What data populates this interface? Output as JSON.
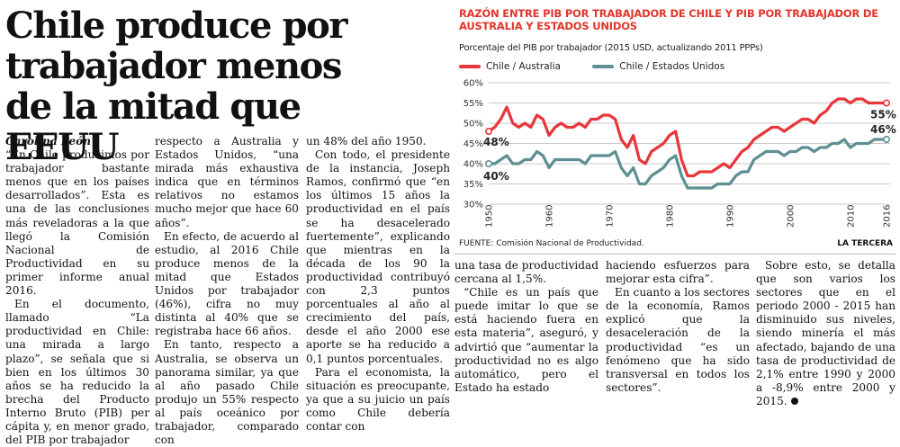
{
  "article": {
    "headline": "Chile produce por trabajador menos de la mitad que EEUU",
    "byline": "Carolina León",
    "col1": [
      "“En Chile producimos por trabajador bastante menos que en los países desarrollados”. Esta es una de las conclusiones más reveladoras a la que llegó la Comisión Nacional de Productividad en su primer informe anual 2016.",
      "En el documento, llamado “La productividad en Chile: una mirada a largo plazo”, se señala que si bien en los últimos 30 años se ha reducido la brecha del Producto Interno Bruto (PIB) per cápita y, en menor grado, del PIB por trabajador"
    ],
    "col2": [
      "respecto a Australia y Estados Unidos, “una mirada más exhaustiva indica que en términos relativos no estamos mucho mejor que hace 60 años”.",
      "En efecto, de acuerdo al estudio, al 2016 Chile produce menos de la mitad que Estados Unidos por trabajador (46%), cifra no muy distinta al 40% que se registraba hace 66 años.",
      "En tanto, respecto a Australia, se observa un panorama similar, ya que al año pasado Chile produjo un 55% respecto al país oceánico por trabajador, comparado con"
    ],
    "col3": [
      "un 48% del año 1950.",
      "Con todo, el presidente de la instancia, Joseph Ramos, confirmó que “en los últimos 15 años la productividad en el país se ha desacelerado fuertemente”, explicando que mientras en la década de los 90 la productividad contribuyó con 2,3 puntos porcentuales al año al crecimiento del país, desde el año 2000 ese aporte se ha reducido a 0,1 puntos porcentuales.",
      "Para el economista, la situación es preocupante, ya que a su juicio un país como Chile debería contar con"
    ],
    "col4": [
      "una tasa de productividad cercana al 1,5%.",
      "“Chile es un país que puede imitar lo que se está haciendo fuera en esta materia”, aseguró, y advirtió que “aumentar la productividad no es algo automático, pero el Estado ha estado"
    ],
    "col5": [
      "haciendo esfuerzos para mejorar esta cifra”.",
      "En cuanto a los sectores de la economía, Ramos explicó que la desaceleración de la productividad “es un fenómeno que ha sido transversal en todos los sectores”."
    ],
    "col6": [
      "Sobre esto, se detalla que son varios los sectores que en el periodo 2000 - 2015 han disminuido sus niveles, siendo minería el más afectado, bajando de una tasa de productividad de 2,1% entre 1990 y 2000 a -8,9% entre 2000 y 2015."
    ]
  },
  "chart": {
    "title": "RAZÓN ENTRE PIB POR TRABAJADOR DE CHILE Y PIB POR TRABAJADOR DE AUSTRALIA Y ESTADOS UNIDOS",
    "subtitle": "Porcentaje del PIB por trabajador (2015 USD, actualizando 2011 PPPs)",
    "source": "FUENTE: Comisión Nacional de Productividad.",
    "brand": "LA TERCERA",
    "colors": {
      "australia": "#e8363a",
      "usa": "#5f8f92",
      "grid": "#c9c9c9"
    }
  },
  "chart_data": {
    "type": "line",
    "x": [
      1950,
      1951,
      1952,
      1953,
      1954,
      1955,
      1956,
      1957,
      1958,
      1959,
      1960,
      1961,
      1962,
      1963,
      1964,
      1965,
      1966,
      1967,
      1968,
      1969,
      1970,
      1971,
      1972,
      1973,
      1974,
      1975,
      1976,
      1977,
      1978,
      1979,
      1980,
      1981,
      1982,
      1983,
      1984,
      1985,
      1986,
      1987,
      1988,
      1989,
      1990,
      1991,
      1992,
      1993,
      1994,
      1995,
      1996,
      1997,
      1998,
      1999,
      2000,
      2001,
      2002,
      2003,
      2004,
      2005,
      2006,
      2007,
      2008,
      2009,
      2010,
      2011,
      2012,
      2013,
      2014,
      2015,
      2016
    ],
    "series": [
      {
        "name": "Chile / Australia",
        "values": [
          48,
          49,
          51,
          54,
          50,
          49,
          50,
          49,
          52,
          51,
          47,
          49,
          50,
          49,
          49,
          50,
          49,
          51,
          51,
          52,
          52,
          51,
          46,
          44,
          47,
          41,
          40,
          43,
          44,
          45,
          47,
          48,
          41,
          37,
          37,
          38,
          38,
          38,
          39,
          40,
          39,
          41,
          43,
          44,
          46,
          47,
          48,
          49,
          49,
          48,
          49,
          50,
          51,
          51,
          50,
          52,
          53,
          55,
          56,
          56,
          55,
          56,
          56,
          55,
          55,
          55,
          55
        ]
      },
      {
        "name": "Chile / Estados Unidos",
        "values": [
          40,
          40,
          41,
          42,
          40,
          40,
          41,
          41,
          43,
          42,
          39,
          41,
          41,
          41,
          41,
          41,
          40,
          42,
          42,
          42,
          42,
          43,
          39,
          37,
          39,
          35,
          35,
          37,
          38,
          39,
          41,
          42,
          37,
          34,
          34,
          34,
          34,
          34,
          35,
          35,
          35,
          37,
          38,
          38,
          41,
          42,
          43,
          43,
          43,
          42,
          43,
          43,
          44,
          44,
          43,
          44,
          44,
          45,
          45,
          46,
          44,
          45,
          45,
          45,
          46,
          46,
          46
        ]
      }
    ],
    "annotations": [
      {
        "label": "48%",
        "x": 1950,
        "series": 0
      },
      {
        "label": "40%",
        "x": 1950,
        "series": 1
      },
      {
        "label": "55%",
        "x": 2016,
        "series": 0
      },
      {
        "label": "46%",
        "x": 2016,
        "series": 1
      }
    ],
    "yticks": [
      "60%",
      "55%",
      "50%",
      "45%",
      "40%",
      "35%",
      "30%"
    ],
    "ytick_values": [
      60,
      55,
      50,
      45,
      40,
      35,
      30
    ],
    "xticks": [
      "1950",
      "1960",
      "1970",
      "1980",
      "1990",
      "2000",
      "2010",
      "2016"
    ],
    "xtick_values": [
      1950,
      1960,
      1970,
      1980,
      1990,
      2000,
      2010,
      2016
    ],
    "ylim": [
      30,
      60
    ],
    "xlim": [
      1950,
      2016
    ],
    "title": "RAZÓN ENTRE PIB POR TRABAJADOR DE CHILE Y PIB POR TRABAJADOR DE AUSTRALIA Y ESTADOS UNIDOS",
    "ylabel": "Porcentaje del PIB por trabajador (2015 USD, actualizando 2011 PPPs)",
    "legend": [
      "Chile / Australia",
      "Chile / Estados Unidos"
    ],
    "legend_position": "top-left",
    "grid": true
  }
}
